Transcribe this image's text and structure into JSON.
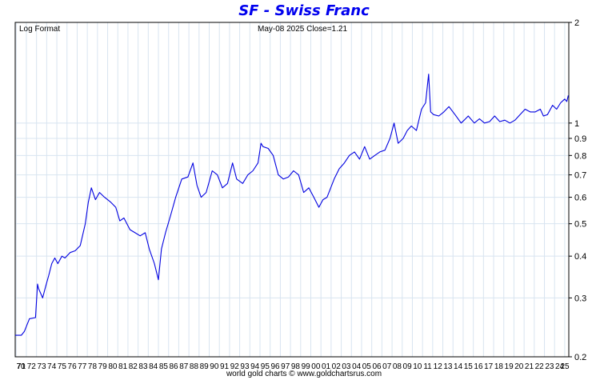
{
  "header": {
    "title": "SF  -  Swiss Franc",
    "scale_label": "Log Format",
    "info": "May-08  2025   Close=1.21"
  },
  "footer": {
    "text": "world gold charts © www.goldchartsrus.com"
  },
  "colors": {
    "line": "#0000e0",
    "title": "#0000ee",
    "grid": "#d8e4f0"
  },
  "chart_data": {
    "type": "line",
    "title": "SF  -  Swiss Franc",
    "y_scale": "log",
    "ylim": [
      0.2,
      2
    ],
    "xlim": [
      1970.9,
      2025.4
    ],
    "grid": true,
    "y_ticks": [
      0.2,
      0.3,
      0.4,
      0.5,
      0.6,
      0.7,
      0.8,
      0.9,
      1,
      2
    ],
    "x_tick_labels": [
      "70",
      "71",
      "72",
      "73",
      "74",
      "75",
      "76",
      "77",
      "78",
      "79",
      "80",
      "81",
      "82",
      "83",
      "84",
      "85",
      "86",
      "87",
      "88",
      "89",
      "90",
      "91",
      "92",
      "93",
      "94",
      "95",
      "96",
      "97",
      "98",
      "99",
      "00",
      "01",
      "02",
      "03",
      "04",
      "05",
      "06",
      "07",
      "08",
      "09",
      "10",
      "11",
      "12",
      "13",
      "14",
      "15",
      "16",
      "17",
      "18",
      "19",
      "20",
      "21",
      "22",
      "23",
      "24",
      "25"
    ],
    "series": [
      {
        "x": [
          1970.9,
          1971.5,
          1971.8,
          1972.3,
          1972.9,
          1973.1,
          1973.2,
          1973.4,
          1973.6,
          1973.9,
          1974.2,
          1974.5,
          1974.8,
          1975.1,
          1975.5,
          1975.8,
          1976.3,
          1976.8,
          1977.3,
          1977.8,
          1978.1,
          1978.4,
          1978.8,
          1979.2,
          1979.7,
          1980.3,
          1980.8,
          1981.2,
          1981.6,
          1982.2,
          1982.7,
          1983.2,
          1983.7,
          1984.1,
          1984.6,
          1985.0,
          1985.3,
          1985.7,
          1986.2,
          1986.7,
          1987.3,
          1987.9,
          1988.4,
          1988.8,
          1989.2,
          1989.7,
          1990.3,
          1990.8,
          1991.3,
          1991.8,
          1992.3,
          1992.7,
          1993.3,
          1993.8,
          1994.3,
          1994.8,
          1995.1,
          1995.3,
          1995.8,
          1996.3,
          1996.8,
          1997.3,
          1997.8,
          1998.3,
          1998.8,
          1999.3,
          1999.8,
          2000.3,
          2000.8,
          2001.2,
          2001.6,
          2002.3,
          2002.8,
          2003.3,
          2003.8,
          2004.3,
          2004.8,
          2005.3,
          2005.8,
          2006.3,
          2006.8,
          2007.3,
          2007.8,
          2008.2,
          2008.6,
          2009.1,
          2009.5,
          2009.9,
          2010.4,
          2010.9,
          2011.3,
          2011.6,
          2011.8,
          2012.1,
          2012.6,
          2013.1,
          2013.6,
          2014.2,
          2014.8,
          2015.1,
          2015.5,
          2016.1,
          2016.6,
          2017.1,
          2017.6,
          2018.1,
          2018.6,
          2019.1,
          2019.6,
          2020.1,
          2020.6,
          2021.1,
          2021.6,
          2022.1,
          2022.6,
          2022.9,
          2023.3,
          2023.8,
          2024.2,
          2024.6,
          2025.0,
          2025.2,
          2025.35
        ],
        "y": [
          0.232,
          0.232,
          0.238,
          0.26,
          0.262,
          0.33,
          0.32,
          0.31,
          0.3,
          0.325,
          0.35,
          0.38,
          0.395,
          0.38,
          0.4,
          0.395,
          0.41,
          0.415,
          0.43,
          0.5,
          0.58,
          0.64,
          0.59,
          0.62,
          0.6,
          0.58,
          0.56,
          0.51,
          0.52,
          0.48,
          0.47,
          0.46,
          0.47,
          0.42,
          0.38,
          0.34,
          0.42,
          0.47,
          0.53,
          0.6,
          0.68,
          0.69,
          0.76,
          0.65,
          0.6,
          0.62,
          0.72,
          0.7,
          0.64,
          0.66,
          0.76,
          0.68,
          0.66,
          0.7,
          0.72,
          0.76,
          0.87,
          0.85,
          0.84,
          0.8,
          0.7,
          0.68,
          0.69,
          0.72,
          0.7,
          0.62,
          0.64,
          0.6,
          0.56,
          0.59,
          0.6,
          0.68,
          0.73,
          0.76,
          0.8,
          0.82,
          0.78,
          0.85,
          0.78,
          0.8,
          0.82,
          0.83,
          0.9,
          1.0,
          0.87,
          0.9,
          0.95,
          0.98,
          0.95,
          1.1,
          1.15,
          1.4,
          1.08,
          1.06,
          1.05,
          1.08,
          1.12,
          1.06,
          1.0,
          1.02,
          1.05,
          1.0,
          1.03,
          1.0,
          1.01,
          1.05,
          1.01,
          1.02,
          1.0,
          1.02,
          1.06,
          1.1,
          1.08,
          1.08,
          1.1,
          1.05,
          1.06,
          1.13,
          1.1,
          1.15,
          1.18,
          1.16,
          1.21
        ]
      }
    ]
  }
}
